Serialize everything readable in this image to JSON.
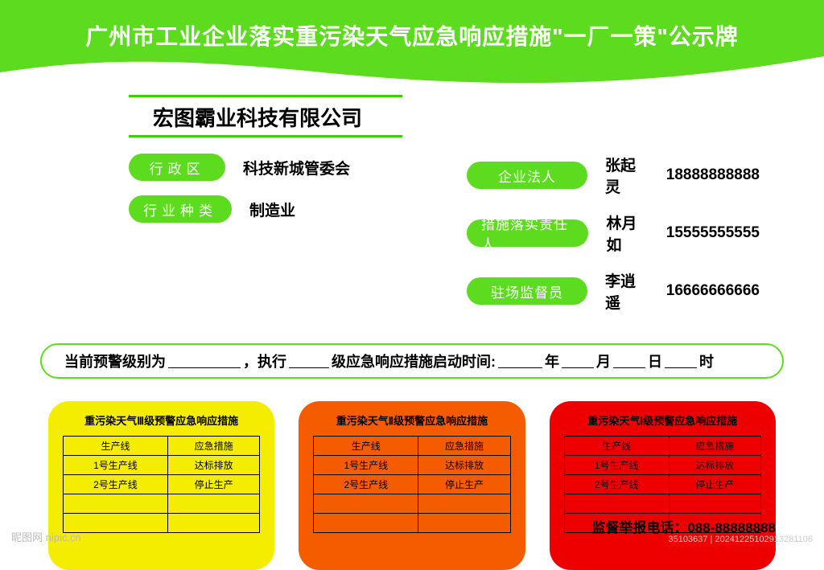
{
  "colors": {
    "brand_green": "#5ddc1f",
    "line_green": "#3bcf00",
    "card_yellow": "#f4ed00",
    "card_orange": "#f55c00",
    "card_red": "#ef0000"
  },
  "header": {
    "title": "广州市工业企业落实重污染天气应急响应措施\"一厂一策\"公示牌"
  },
  "company": {
    "name": "宏图霸业科技有限公司"
  },
  "left_info": [
    {
      "label": "行政区",
      "value": "科技新城管委会"
    },
    {
      "label": "行业种类",
      "value": "制造业"
    }
  ],
  "right_info": [
    {
      "label": "企业法人",
      "name": "张起灵",
      "phone": "18888888888"
    },
    {
      "label": "措施落实责任人",
      "name": "林月如",
      "phone": "15555555555"
    },
    {
      "label": "驻场监督员",
      "name": "李逍遥",
      "phone": "16666666666"
    }
  ],
  "alert_bar": {
    "t1": "当前预警级别为",
    "t2": "，执行",
    "t3": "级应急响应措施启动时间:",
    "y": "年",
    "m": "月",
    "d": "日",
    "h": "时"
  },
  "cards": [
    {
      "bg_key": "card_yellow",
      "title": "重污染天气Ⅲ级预警应急响应措施",
      "headers": [
        "生产线",
        "应急措施"
      ],
      "rows": [
        [
          "1号生产线",
          "达标排放"
        ],
        [
          "2号生产线",
          "停止生产"
        ],
        [
          "",
          ""
        ],
        [
          "",
          ""
        ]
      ]
    },
    {
      "bg_key": "card_orange",
      "title": "重污染天气Ⅱ级预警应急响应措施",
      "headers": [
        "生产线",
        "应急措施"
      ],
      "rows": [
        [
          "1号生产线",
          "达标排放"
        ],
        [
          "2号生产线",
          "停止生产"
        ],
        [
          "",
          ""
        ],
        [
          "",
          ""
        ]
      ]
    },
    {
      "bg_key": "card_red",
      "title": "重污染天气Ⅰ级预警应急响应措施",
      "headers": [
        "生产线",
        "应急措施"
      ],
      "rows": [
        [
          "1号生产线",
          "达标排放"
        ],
        [
          "2号生产线",
          "停止生产"
        ],
        [
          "",
          ""
        ],
        [
          "",
          ""
        ]
      ]
    }
  ],
  "footer": {
    "label": "监督举报电话：",
    "phone": "088-88888888"
  },
  "watermark": {
    "bl": "昵图网 nipic.cn",
    "br": "35103637 | 20241225102913281106"
  }
}
